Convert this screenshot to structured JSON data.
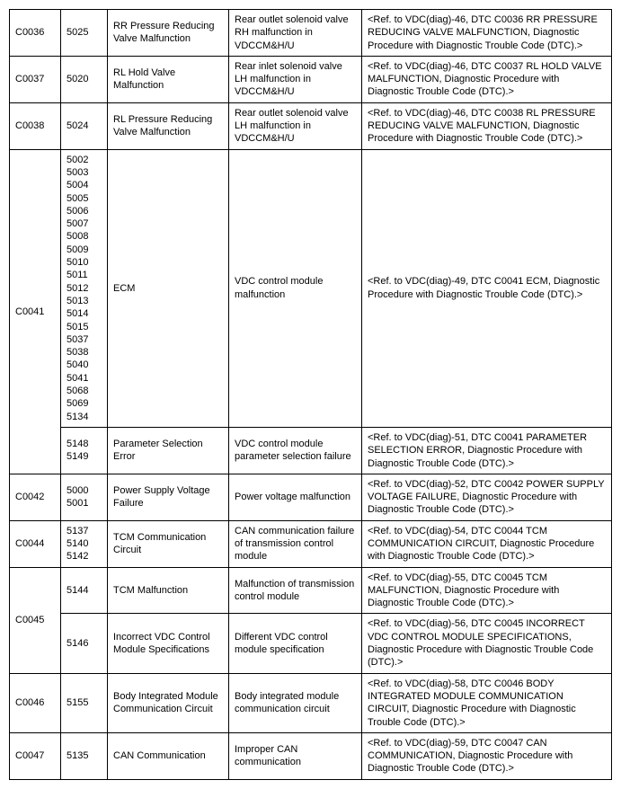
{
  "rows": [
    {
      "dtc": "C0036",
      "codes": "5025",
      "item": "RR Pressure Reducing Valve Malfunction",
      "diag": "Rear outlet solenoid valve RH malfunction in VDCCM&H/U",
      "ref": "<Ref. to VDC(diag)-46, DTC C0036 RR PRESSURE REDUCING VALVE MALFUNCTION, Diagnostic Procedure with Diagnostic Trouble Code (DTC).>"
    },
    {
      "dtc": "C0037",
      "codes": "5020",
      "item": "RL Hold Valve Malfunction",
      "diag": "Rear inlet solenoid valve LH malfunction in VDCCM&H/U",
      "ref": "<Ref. to VDC(diag)-46, DTC C0037 RL HOLD VALVE MALFUNCTION, Diagnostic Procedure with Diagnostic Trouble Code (DTC).>"
    },
    {
      "dtc": "C0038",
      "codes": "5024",
      "item": "RL Pressure Reducing Valve Malfunction",
      "diag": "Rear outlet solenoid valve LH malfunction in VDCCM&H/U",
      "ref": "<Ref. to VDC(diag)-46, DTC C0038 RL PRESSURE REDUCING VALVE MALFUNCTION, Diagnostic Procedure with Diagnostic Trouble Code (DTC).>"
    },
    {
      "dtc": "C0041",
      "dtc_rowspan": 2,
      "codes": "5002\n5003\n5004\n5005\n5006\n5007\n5008\n5009\n5010\n5011\n5012\n5013\n5014\n5015\n5037\n5038\n5040\n5041\n5068\n5069\n5134",
      "item": "ECM",
      "diag": "VDC control module malfunction",
      "ref": "<Ref. to VDC(diag)-49, DTC C0041 ECM, Diagnostic Procedure with Diagnostic Trouble Code (DTC).>"
    },
    {
      "skip_dtc": true,
      "codes": "5148\n5149",
      "item": "Parameter Selection Error",
      "diag": "VDC control module parameter selection failure",
      "ref": "<Ref. to VDC(diag)-51, DTC C0041 PARAMETER SELECTION ERROR, Diagnostic Procedure with Diagnostic Trouble Code (DTC).>"
    },
    {
      "dtc": "C0042",
      "codes": "5000\n5001",
      "item": "Power Supply Voltage Failure",
      "diag": "Power voltage malfunction",
      "ref": "<Ref. to VDC(diag)-52, DTC C0042 POWER SUPPLY VOLTAGE FAILURE, Diagnostic Procedure with Diagnostic Trouble Code (DTC).>"
    },
    {
      "dtc": "C0044",
      "codes": "5137\n5140\n5142",
      "item": "TCM Communication Circuit",
      "diag": "CAN communication failure of transmission control module",
      "ref": "<Ref. to VDC(diag)-54, DTC C0044 TCM COMMUNICATION CIRCUIT, Diagnostic Procedure with Diagnostic Trouble Code (DTC).>"
    },
    {
      "dtc": "C0045",
      "dtc_rowspan": 2,
      "codes": "5144",
      "item": "TCM Malfunction",
      "diag": "Malfunction of transmission control module",
      "ref": "<Ref. to VDC(diag)-55, DTC C0045 TCM MALFUNCTION, Diagnostic Procedure with Diagnostic Trouble Code (DTC).>"
    },
    {
      "skip_dtc": true,
      "codes": "5146",
      "item": "Incorrect VDC Control Module Specifications",
      "diag": "Different VDC control module specification",
      "ref": "<Ref. to VDC(diag)-56, DTC C0045 INCORRECT VDC CONTROL MODULE SPECIFICATIONS, Diagnostic Procedure with Diagnostic Trouble Code (DTC).>"
    },
    {
      "dtc": "C0046",
      "codes": "5155",
      "item": "Body Integrated Module Communication Circuit",
      "diag": "Body integrated module communication circuit",
      "ref": "<Ref. to VDC(diag)-58, DTC C0046 BODY INTEGRATED MODULE COMMUNICATION CIRCUIT, Diagnostic Procedure with Diagnostic Trouble Code (DTC).>"
    },
    {
      "dtc": "C0047",
      "codes": "5135",
      "item": "CAN Communication",
      "diag": "Improper CAN communication",
      "ref": "<Ref. to VDC(diag)-59, DTC C0047 CAN COMMUNICATION, Diagnostic Procedure with Diagnostic Trouble Code (DTC).>"
    }
  ]
}
